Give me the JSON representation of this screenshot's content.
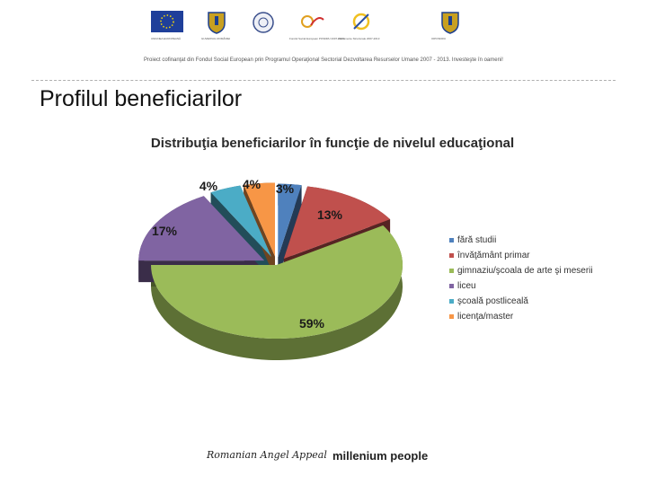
{
  "header": {
    "logos": [
      {
        "icon": "eu-flag-icon",
        "caption": "UNIUNEA EUROPEANĂ"
      },
      {
        "icon": "romania-coat-of-arms-icon",
        "caption": "GUVERNUL ROMÂNIEI"
      },
      {
        "icon": "ministry-seal-icon",
        "caption": ""
      },
      {
        "icon": "fse-logo-icon",
        "caption": "Fondul Social European POSDRU 2007-2013"
      },
      {
        "icon": "instrumente-structurale-icon",
        "caption": "Instrumente Structurale 2007-2013"
      },
      {
        "icon": "romania-coat-of-arms-icon",
        "caption": "OIPOSDRU"
      }
    ],
    "project_line": "Proiect cofinanţat din Fondul Social European prin Programul Operaţional Sectorial Dezvoltarea Resurselor Umane 2007 - 2013. Investeşte în oameni!"
  },
  "page_title": "Profilul beneficiarilor",
  "chart_data": {
    "type": "pie",
    "title": "Distribuţia beneficiarilor în funcţie de nivelul educaţional",
    "legend_position": "right",
    "slices": [
      {
        "label": "fără studii",
        "value": 3,
        "display": "3%",
        "color": "#4F81BD"
      },
      {
        "label": "învăţământ primar",
        "value": 13,
        "display": "13%",
        "color": "#C0504D"
      },
      {
        "label": "gimnaziu/şcoala de arte şi meserii",
        "value": 59,
        "display": "59%",
        "color": "#9BBB59"
      },
      {
        "label": "liceu",
        "value": 17,
        "display": "17%",
        "color": "#8064A2"
      },
      {
        "label": "şcoală postliceală",
        "value": 4,
        "display": "4%",
        "color": "#4BACC6"
      },
      {
        "label": "licenţa/master",
        "value": 4,
        "display": "4%",
        "color": "#F79646"
      }
    ]
  },
  "footer": {
    "left_logo": "Romanian Angel Appeal",
    "right_logo": "millenium people"
  }
}
